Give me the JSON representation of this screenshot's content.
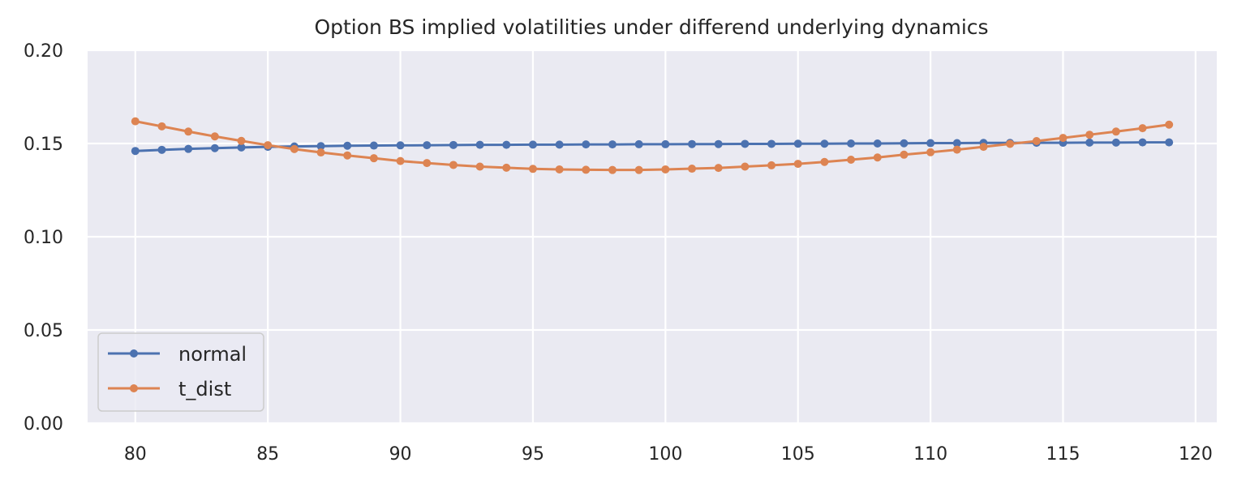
{
  "chart_data": {
    "type": "line",
    "title": "Option BS implied volatilities under differend underlying dynamics",
    "xlabel": "",
    "ylabel": "",
    "xlim": [
      78.2,
      120.8
    ],
    "ylim": [
      0.0,
      0.2
    ],
    "x_ticks": [
      80,
      85,
      90,
      95,
      100,
      105,
      110,
      115,
      120
    ],
    "x_tick_labels": [
      "80",
      "85",
      "90",
      "95",
      "100",
      "105",
      "110",
      "115",
      "120"
    ],
    "y_ticks": [
      0.0,
      0.05,
      0.1,
      0.15,
      0.2
    ],
    "y_tick_labels": [
      "0.00",
      "0.05",
      "0.10",
      "0.15",
      "0.20"
    ],
    "grid": true,
    "legend_position": "lower-left",
    "x": [
      80,
      81,
      82,
      83,
      84,
      85,
      86,
      87,
      88,
      89,
      90,
      91,
      92,
      93,
      94,
      95,
      96,
      97,
      98,
      99,
      100,
      101,
      102,
      103,
      104,
      105,
      106,
      107,
      108,
      109,
      110,
      111,
      112,
      113,
      114,
      115,
      116,
      117,
      118,
      119
    ],
    "series": [
      {
        "name": "normal",
        "color": "#4c72b0",
        "values": [
          0.146,
          0.1466,
          0.1471,
          0.1475,
          0.1479,
          0.1482,
          0.1484,
          0.1486,
          0.1488,
          0.1489,
          0.149,
          0.1491,
          0.1492,
          0.1493,
          0.1493,
          0.1494,
          0.1494,
          0.1495,
          0.1495,
          0.1496,
          0.1496,
          0.1497,
          0.1497,
          0.1498,
          0.1498,
          0.1499,
          0.1499,
          0.15,
          0.15,
          0.1501,
          0.1502,
          0.1502,
          0.1503,
          0.1503,
          0.1504,
          0.1504,
          0.1505,
          0.1505,
          0.1506,
          0.1506
        ]
      },
      {
        "name": "t_dist",
        "color": "#dd8452",
        "values": [
          0.1619,
          0.1592,
          0.1564,
          0.1538,
          0.1514,
          0.1491,
          0.147,
          0.1452,
          0.1436,
          0.1421,
          0.1406,
          0.1395,
          0.1385,
          0.1376,
          0.137,
          0.1364,
          0.1361,
          0.1359,
          0.1358,
          0.1358,
          0.1361,
          0.1365,
          0.1369,
          0.1376,
          0.1383,
          0.1391,
          0.1401,
          0.1413,
          0.1425,
          0.144,
          0.1453,
          0.1467,
          0.1482,
          0.1498,
          0.1513,
          0.153,
          0.1547,
          0.1564,
          0.1582,
          0.1601
        ]
      }
    ]
  }
}
